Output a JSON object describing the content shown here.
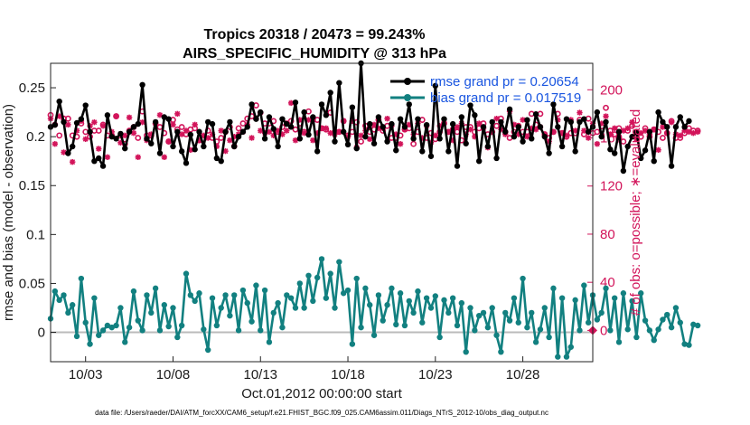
{
  "chart_data": {
    "type": "line",
    "title": "Tropics 20318 / 20473 = 99.243%",
    "subtitle": "AIRS_SPECIFIC_HUMIDITY @ 313 hPa",
    "xlabel": "Oct.01,2012 00:00:00 start",
    "ylabel_left": "rmse and bias (model - observation)",
    "ylabel_right": "# of obs: o=possible; ∗=evaluated",
    "footnote": "data file: /Users/raeder/DAI/ATM_forcXX/CAM6_setup/f.e21.FHIST_BGC.f09_025.CAM6assim.011/Diags_NTrS_2012-10/obs_diag_output.nc",
    "x_ticks": [
      {
        "value": 3,
        "label": "10/03"
      },
      {
        "value": 8,
        "label": "10/08"
      },
      {
        "value": 13,
        "label": "10/13"
      },
      {
        "value": 18,
        "label": "10/18"
      },
      {
        "value": 23,
        "label": "10/23"
      },
      {
        "value": 28,
        "label": "10/28"
      }
    ],
    "xlim": [
      1,
      32
    ],
    "ylim_left": [
      -0.03,
      0.275
    ],
    "ylim_right": [
      -26,
      222
    ],
    "y_ticks_left": [
      {
        "value": 0,
        "label": "0"
      },
      {
        "value": 0.05,
        "label": "0.05"
      },
      {
        "value": 0.1,
        "label": "0.1"
      },
      {
        "value": 0.15,
        "label": "0.15"
      },
      {
        "value": 0.2,
        "label": "0.2"
      },
      {
        "value": 0.25,
        "label": "0.25"
      }
    ],
    "y_ticks_right": [
      {
        "value": 0,
        "label": "0"
      },
      {
        "value": 40,
        "label": "40"
      },
      {
        "value": 80,
        "label": "80"
      },
      {
        "value": 120,
        "label": "120"
      },
      {
        "value": 160,
        "label": "160"
      },
      {
        "value": 200,
        "label": "200"
      }
    ],
    "x_start": 1.0,
    "x_step": 0.25,
    "colors": {
      "rmse": "#000000",
      "bias": "#128080",
      "obs": "#d2145a",
      "zero_line": "#bbbbbb",
      "legend_text": "#1a56e0"
    },
    "series": [
      {
        "name": "rmse grand pr = 0.20654",
        "axis": "left",
        "values": [
          0.21,
          0.212,
          0.236,
          0.215,
          0.183,
          0.19,
          0.214,
          0.218,
          0.232,
          0.205,
          0.175,
          0.178,
          0.17,
          0.222,
          0.2,
          0.198,
          0.203,
          0.188,
          0.205,
          0.21,
          0.213,
          0.253,
          0.198,
          0.193,
          0.215,
          0.183,
          0.22,
          0.218,
          0.19,
          0.205,
          0.185,
          0.173,
          0.202,
          0.187,
          0.205,
          0.19,
          0.215,
          0.213,
          0.178,
          0.175,
          0.205,
          0.215,
          0.19,
          0.2,
          0.205,
          0.21,
          0.233,
          0.218,
          0.225,
          0.198,
          0.22,
          0.208,
          0.19,
          0.218,
          0.213,
          0.21,
          0.235,
          0.198,
          0.225,
          0.202,
          0.22,
          0.185,
          0.233,
          0.222,
          0.245,
          0.195,
          0.255,
          0.205,
          0.192,
          0.23,
          0.188,
          0.275,
          0.2,
          0.213,
          0.193,
          0.22,
          0.21,
          0.195,
          0.213,
          0.186,
          0.218,
          0.21,
          0.233,
          0.198,
          0.218,
          0.185,
          0.212,
          0.18,
          0.252,
          0.198,
          0.218,
          0.185,
          0.213,
          0.17,
          0.22,
          0.193,
          0.232,
          0.222,
          0.175,
          0.21,
          0.19,
          0.215,
          0.178,
          0.215,
          0.205,
          0.228,
          0.2,
          0.21,
          0.195,
          0.217,
          0.198,
          0.223,
          0.21,
          0.2,
          0.183,
          0.233,
          0.21,
          0.19,
          0.218,
          0.215,
          0.185,
          0.215,
          0.218,
          0.205,
          0.21,
          0.225,
          0.2,
          0.215,
          0.187,
          0.183,
          0.205,
          0.165,
          0.19,
          0.2,
          0.205,
          0.178,
          0.186,
          0.205,
          0.175,
          0.225,
          0.215,
          0.21,
          0.17,
          0.21,
          0.22,
          0.21,
          0.216
        ]
      },
      {
        "name": "bias grand pr = 0.017519",
        "axis": "left",
        "values": [
          0.014,
          0.042,
          0.033,
          0.038,
          0.02,
          0.028,
          -0.004,
          0.055,
          0.01,
          -0.012,
          0.035,
          -0.003,
          0.002,
          0.007,
          0.005,
          0.007,
          0.025,
          -0.01,
          0.005,
          0.042,
          0.012,
          0.002,
          0.038,
          0.02,
          0.045,
          0.002,
          0.028,
          0.006,
          0.025,
          -0.005,
          0.007,
          0.06,
          0.038,
          0.032,
          0.04,
          0.003,
          -0.018,
          0.035,
          0.007,
          0.025,
          0.038,
          0.017,
          0.038,
          0.002,
          0.043,
          0.03,
          0.011,
          0.048,
          0.002,
          0.043,
          -0.01,
          0.02,
          0.03,
          0.005,
          0.038,
          0.035,
          0.025,
          0.05,
          0.025,
          0.058,
          0.032,
          0.056,
          0.075,
          0.035,
          0.06,
          0.025,
          0.072,
          0.04,
          0.043,
          -0.012,
          0.055,
          0.005,
          0.045,
          0.028,
          -0.003,
          0.038,
          0.012,
          0.028,
          0.045,
          0.008,
          0.04,
          0.007,
          0.032,
          0.02,
          0.042,
          0.01,
          0.035,
          0.025,
          0.037,
          -0.005,
          0.033,
          0.02,
          0.035,
          0.007,
          0.03,
          -0.02,
          0.025,
          0.002,
          0.017,
          0.02,
          0.005,
          0.025,
          -0.003,
          -0.02,
          0.02,
          0.012,
          0.035,
          0.01,
          0.055,
          0.005,
          0.02,
          -0.01,
          0.003,
          0.025,
          -0.005,
          0.045,
          -0.025,
          0.035,
          -0.025,
          -0.015,
          0.033,
          0.002,
          0.048,
          0.01,
          0.038,
          0.013,
          0.02,
          0.045,
          0.002,
          0.035,
          -0.01,
          0.04,
          0.003,
          0.032,
          -0.005,
          0.04,
          0.012,
          0.002,
          -0.008,
          0.003,
          0.013,
          0.018,
          0.005,
          0.025,
          0.01,
          -0.012,
          -0.013,
          0.008,
          0.007
        ]
      },
      {
        "name": "obs possible",
        "axis": "right",
        "marker": "o",
        "values": [
          179,
          171,
          162,
          176,
          176,
          162,
          161,
          172,
          165,
          161,
          166,
          166,
          171,
          162,
          162,
          178,
          162,
          155,
          166,
          169,
          160,
          182,
          162,
          162,
          172,
          169,
          164,
          157,
          175,
          167,
          169,
          163,
          167,
          168,
          158,
          159,
          166,
          160,
          157,
          160,
          165,
          169,
          153,
          168,
          172,
          176,
          178,
          187,
          181,
          172,
          172,
          174,
          165,
          169,
          172,
          174,
          167,
          172,
          165,
          182,
          175,
          175,
          168,
          167,
          181,
          165,
          165,
          174,
          162,
          165,
          173,
          157,
          170,
          165,
          167,
          175,
          166,
          170,
          160,
          160,
          162,
          167,
          168,
          155,
          165,
          175,
          160,
          164,
          159,
          165,
          172,
          165,
          167,
          165,
          158,
          169,
          169,
          165,
          168,
          172,
          163,
          165,
          170,
          176,
          165,
          160,
          165,
          170,
          165,
          165,
          180,
          171,
          180,
          163,
          160,
          165,
          180,
          164,
          161,
          164,
          164,
          175,
          163,
          176,
          164,
          165,
          166,
          185,
          166,
          163,
          168,
          157,
          166,
          170,
          164,
          161,
          168,
          161,
          167,
          165,
          160,
          164,
          174,
          160,
          160,
          164,
          168,
          166,
          166
        ]
      },
      {
        "name": "obs evaluated",
        "axis": "right",
        "marker": "*",
        "values": [
          176,
          155,
          178,
          148,
          171,
          140,
          166,
          174,
          159,
          170,
          173,
          151,
          170,
          144,
          165,
          178,
          156,
          162,
          177,
          164,
          144,
          173,
          158,
          163,
          172,
          179,
          144,
          157,
          171,
          180,
          163,
          166,
          150,
          171,
          158,
          162,
          160,
          163,
          153,
          166,
          149,
          158,
          161,
          163,
          165,
          171,
          160,
          176,
          166,
          164,
          165,
          162,
          166,
          163,
          166,
          189,
          158,
          175,
          164,
          175,
          158,
          164,
          168,
          168,
          164,
          163,
          165,
          174,
          161,
          174,
          152,
          162,
          166,
          159,
          171,
          168,
          168,
          176,
          170,
          163,
          155,
          167,
          171,
          163,
          172,
          160,
          170,
          156,
          162,
          170,
          173,
          165,
          158,
          169,
          172,
          163,
          167,
          161,
          172,
          168,
          152,
          165,
          176,
          167,
          163,
          182,
          171,
          163,
          175,
          161,
          168,
          167,
          169,
          163,
          157,
          165,
          175,
          164,
          162,
          175,
          166,
          181,
          166,
          160,
          172,
          155,
          172,
          178,
          163,
          168,
          160,
          166,
          168,
          173,
          159,
          164,
          166,
          163,
          167,
          150,
          169,
          164,
          173,
          163,
          162,
          166,
          165,
          164,
          165
        ]
      }
    ]
  }
}
